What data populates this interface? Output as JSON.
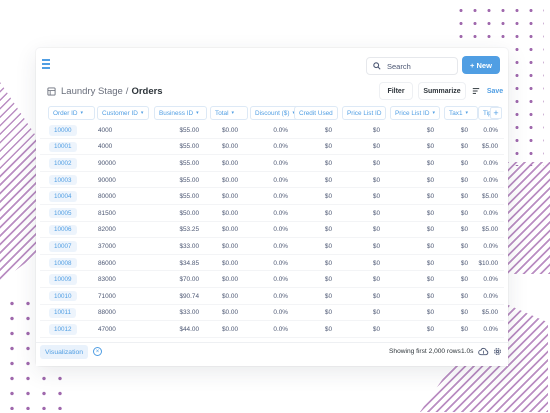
{
  "header": {
    "search_label": "Search",
    "new_label": "New",
    "breadcrumb": {
      "parent": "Laundry Stage",
      "separator": "/",
      "current": "Orders"
    },
    "filter_label": "Filter",
    "summarize_label": "Summarize",
    "save_label": "Save"
  },
  "columns": [
    {
      "label": "Order ID",
      "chevron": true
    },
    {
      "label": "Customer ID",
      "chevron": true
    },
    {
      "label": "Business ID",
      "chevron": true
    },
    {
      "label": "Total",
      "chevron": true
    },
    {
      "label": "Discount ($)",
      "chevron": true
    },
    {
      "label": "Credit Used",
      "chevron": false
    },
    {
      "label": "Price List ID",
      "chevron": false
    },
    {
      "label": "Price List ID",
      "chevron": true
    },
    {
      "label": "Tax1",
      "chevron": true
    },
    {
      "label": "Tip ($)",
      "chevron": false
    }
  ],
  "rows": [
    [
      "10000",
      "4000",
      "$55.00",
      "$0.00",
      "0.0%",
      "$0",
      "$0",
      "$0",
      "$0",
      "0.0%"
    ],
    [
      "10001",
      "4000",
      "$55.00",
      "$0.00",
      "0.0%",
      "$0",
      "$0",
      "$0",
      "$0",
      "$5.00"
    ],
    [
      "10002",
      "90000",
      "$55.00",
      "$0.00",
      "0.0%",
      "$0",
      "$0",
      "$0",
      "$0",
      "0.0%"
    ],
    [
      "10003",
      "90000",
      "$55.00",
      "$0.00",
      "0.0%",
      "$0",
      "$0",
      "$0",
      "$0",
      "0.0%"
    ],
    [
      "10004",
      "80000",
      "$55.00",
      "$0.00",
      "0.0%",
      "$0",
      "$0",
      "$0",
      "$0",
      "$5.00"
    ],
    [
      "10005",
      "81500",
      "$50.00",
      "$0.00",
      "0.0%",
      "$0",
      "$0",
      "$0",
      "$0",
      "0.0%"
    ],
    [
      "10006",
      "82000",
      "$53.25",
      "$0.00",
      "0.0%",
      "$0",
      "$0",
      "$0",
      "$0",
      "$5.00"
    ],
    [
      "10007",
      "37000",
      "$33.00",
      "$0.00",
      "0.0%",
      "$0",
      "$0",
      "$0",
      "$0",
      "0.0%"
    ],
    [
      "10008",
      "86000",
      "$34.85",
      "$0.00",
      "0.0%",
      "$0",
      "$0",
      "$0",
      "$0",
      "$10.00"
    ],
    [
      "10009",
      "83000",
      "$70.00",
      "$0.00",
      "0.0%",
      "$0",
      "$0",
      "$0",
      "$0",
      "0.0%"
    ],
    [
      "10010",
      "71000",
      "$90.74",
      "$0.00",
      "0.0%",
      "$0",
      "$0",
      "$0",
      "$0",
      "0.0%"
    ],
    [
      "10011",
      "88000",
      "$33.00",
      "$0.00",
      "0.0%",
      "$0",
      "$0",
      "$0",
      "$0",
      "$5.00"
    ],
    [
      "10012",
      "47000",
      "$44.00",
      "$0.00",
      "0.0%",
      "$0",
      "$0",
      "$0",
      "$0",
      "0.0%"
    ]
  ],
  "footer": {
    "visualization_label": "Visualization",
    "row_count_text": "Showing first 2,000 rows",
    "time_text": "1.0s"
  },
  "icons": {
    "menu": "hamburger-icon",
    "search": "search-icon",
    "table": "table-icon",
    "settings": "sliders-icon",
    "close": "close-circle-icon",
    "download": "cloud-download-icon",
    "gear": "gear-icon"
  },
  "colors": {
    "accent": "#509ee3",
    "text": "#4c5773",
    "pill_bg": "#edf4fc",
    "decor": "#8f4f9f"
  }
}
